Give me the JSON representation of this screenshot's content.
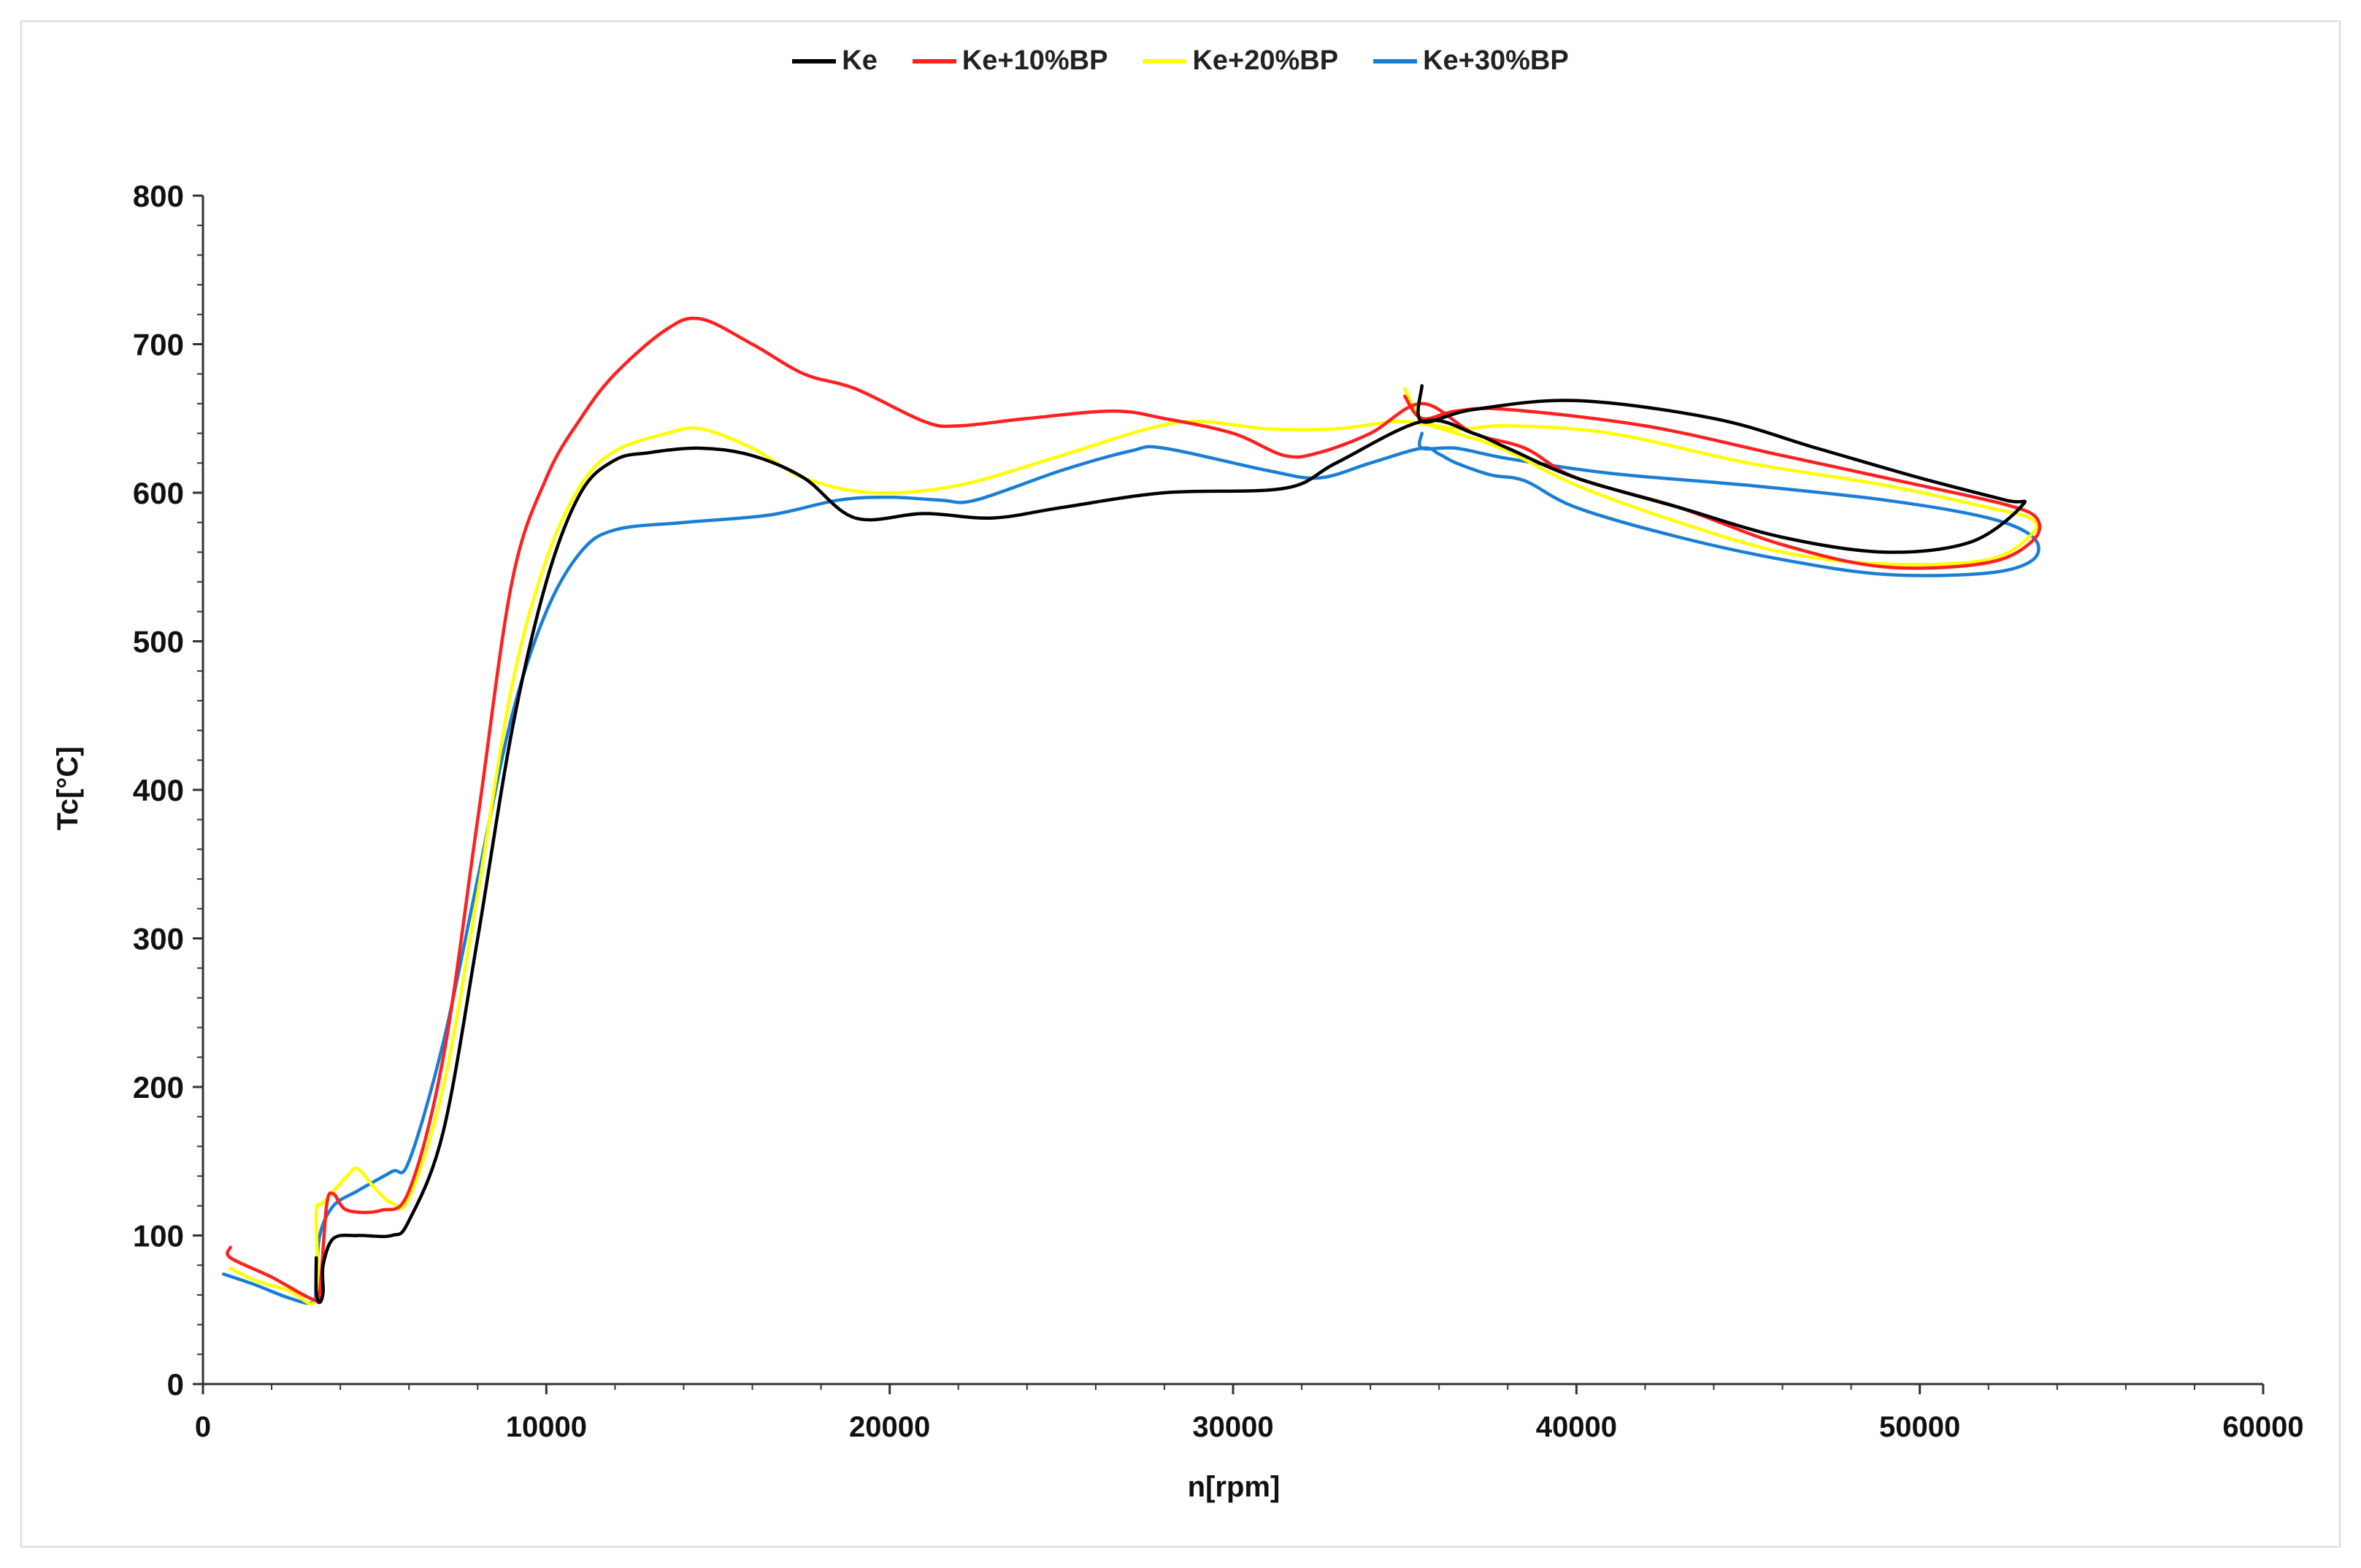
{
  "chart_data": {
    "type": "line",
    "title": "",
    "xlabel": "n[rpm]",
    "ylabel": "Tc[°C]",
    "xlim": [
      0,
      60000
    ],
    "ylim": [
      0,
      800
    ],
    "x_ticks": [
      0,
      10000,
      20000,
      30000,
      40000,
      50000,
      60000
    ],
    "y_ticks": [
      0,
      100,
      200,
      300,
      400,
      500,
      600,
      700,
      800
    ],
    "grid": false,
    "legend_position": "top-center",
    "series": [
      {
        "name": "Ke",
        "color": "#000000",
        "points": [
          [
            3300,
            85
          ],
          [
            3300,
            62
          ],
          [
            3400,
            55
          ],
          [
            3500,
            62
          ],
          [
            3500,
            80
          ],
          [
            3800,
            98
          ],
          [
            4500,
            100
          ],
          [
            5500,
            100
          ],
          [
            6000,
            110
          ],
          [
            7000,
            170
          ],
          [
            8000,
            300
          ],
          [
            9000,
            440
          ],
          [
            10000,
            540
          ],
          [
            11000,
            600
          ],
          [
            12000,
            622
          ],
          [
            13000,
            627
          ],
          [
            14500,
            630
          ],
          [
            16000,
            625
          ],
          [
            17500,
            610
          ],
          [
            19000,
            583
          ],
          [
            21000,
            586
          ],
          [
            23000,
            583
          ],
          [
            25000,
            590
          ],
          [
            28000,
            600
          ],
          [
            31500,
            603
          ],
          [
            33000,
            620
          ],
          [
            35500,
            648
          ],
          [
            37000,
            640
          ],
          [
            38000,
            630
          ],
          [
            40000,
            610
          ],
          [
            43000,
            590
          ],
          [
            46000,
            570
          ],
          [
            49000,
            560
          ],
          [
            51500,
            567
          ],
          [
            53000,
            592
          ],
          [
            52500,
            595
          ],
          [
            50000,
            610
          ],
          [
            47000,
            630
          ],
          [
            44000,
            650
          ],
          [
            40000,
            662
          ],
          [
            37000,
            656
          ],
          [
            35500,
            648
          ],
          [
            35500,
            672
          ]
        ]
      },
      {
        "name": "Ke+10%BP",
        "color": "#ff2020",
        "points": [
          [
            800,
            92
          ],
          [
            800,
            85
          ],
          [
            2000,
            72
          ],
          [
            3200,
            57
          ],
          [
            3400,
            62
          ],
          [
            3600,
            120
          ],
          [
            3800,
            128
          ],
          [
            4200,
            117
          ],
          [
            5200,
            117
          ],
          [
            6000,
            130
          ],
          [
            7000,
            220
          ],
          [
            8000,
            380
          ],
          [
            9000,
            540
          ],
          [
            10000,
            610
          ],
          [
            11000,
            650
          ],
          [
            12000,
            680
          ],
          [
            13500,
            710
          ],
          [
            14500,
            717
          ],
          [
            16000,
            700
          ],
          [
            17500,
            680
          ],
          [
            19000,
            670
          ],
          [
            21000,
            648
          ],
          [
            22000,
            645
          ],
          [
            24000,
            650
          ],
          [
            26500,
            655
          ],
          [
            28000,
            650
          ],
          [
            30000,
            640
          ],
          [
            31500,
            625
          ],
          [
            32500,
            627
          ],
          [
            34000,
            640
          ],
          [
            35500,
            660
          ],
          [
            37000,
            640
          ],
          [
            38500,
            630
          ],
          [
            40000,
            610
          ],
          [
            43000,
            590
          ],
          [
            46000,
            565
          ],
          [
            49000,
            550
          ],
          [
            52000,
            553
          ],
          [
            53300,
            568
          ],
          [
            53400,
            583
          ],
          [
            52500,
            592
          ],
          [
            50000,
            605
          ],
          [
            46000,
            625
          ],
          [
            42000,
            645
          ],
          [
            38000,
            656
          ],
          [
            36500,
            655
          ],
          [
            35500,
            650
          ],
          [
            35000,
            665
          ]
        ]
      },
      {
        "name": "Ke+20%BP",
        "color": "#ffff00",
        "points": [
          [
            800,
            78
          ],
          [
            1500,
            70
          ],
          [
            2500,
            63
          ],
          [
            3300,
            57
          ],
          [
            3300,
            115
          ],
          [
            3500,
            122
          ],
          [
            4200,
            140
          ],
          [
            4500,
            145
          ],
          [
            5000,
            132
          ],
          [
            5500,
            122
          ],
          [
            6000,
            125
          ],
          [
            7000,
            200
          ],
          [
            8000,
            330
          ],
          [
            9000,
            470
          ],
          [
            10000,
            555
          ],
          [
            11000,
            605
          ],
          [
            12000,
            628
          ],
          [
            13500,
            640
          ],
          [
            14500,
            643
          ],
          [
            16000,
            630
          ],
          [
            17500,
            610
          ],
          [
            19500,
            600
          ],
          [
            22000,
            605
          ],
          [
            25000,
            625
          ],
          [
            27500,
            643
          ],
          [
            29000,
            648
          ],
          [
            31000,
            643
          ],
          [
            33000,
            643
          ],
          [
            35000,
            648
          ],
          [
            36500,
            640
          ],
          [
            38000,
            628
          ],
          [
            40000,
            605
          ],
          [
            43000,
            580
          ],
          [
            46000,
            560
          ],
          [
            49000,
            552
          ],
          [
            52000,
            555
          ],
          [
            53300,
            573
          ],
          [
            53200,
            583
          ],
          [
            52000,
            590
          ],
          [
            49000,
            605
          ],
          [
            45000,
            620
          ],
          [
            41000,
            640
          ],
          [
            38000,
            645
          ],
          [
            36500,
            643
          ],
          [
            35500,
            650
          ],
          [
            35000,
            670
          ]
        ]
      },
      {
        "name": "Ke+30%BP",
        "color": "#1a7fd4",
        "points": [
          [
            600,
            74
          ],
          [
            1500,
            67
          ],
          [
            2500,
            58
          ],
          [
            3200,
            55
          ],
          [
            3300,
            70
          ],
          [
            3400,
            100
          ],
          [
            3800,
            120
          ],
          [
            4500,
            130
          ],
          [
            5500,
            143
          ],
          [
            6000,
            150
          ],
          [
            7000,
            230
          ],
          [
            8000,
            340
          ],
          [
            9000,
            450
          ],
          [
            10000,
            520
          ],
          [
            11000,
            560
          ],
          [
            12000,
            575
          ],
          [
            14000,
            580
          ],
          [
            16500,
            585
          ],
          [
            18500,
            595
          ],
          [
            20000,
            597
          ],
          [
            21500,
            595
          ],
          [
            22500,
            595
          ],
          [
            25000,
            615
          ],
          [
            27000,
            628
          ],
          [
            28000,
            630
          ],
          [
            31000,
            615
          ],
          [
            32500,
            610
          ],
          [
            34000,
            620
          ],
          [
            35500,
            630
          ],
          [
            36000,
            626
          ],
          [
            36500,
            620
          ],
          [
            37500,
            612
          ],
          [
            38500,
            608
          ],
          [
            40000,
            590
          ],
          [
            43000,
            570
          ],
          [
            46000,
            555
          ],
          [
            49000,
            545
          ],
          [
            52000,
            546
          ],
          [
            53300,
            555
          ],
          [
            53300,
            570
          ],
          [
            52000,
            583
          ],
          [
            49000,
            595
          ],
          [
            45000,
            605
          ],
          [
            41000,
            613
          ],
          [
            38000,
            623
          ],
          [
            36500,
            630
          ],
          [
            35500,
            630
          ],
          [
            35500,
            640
          ]
        ]
      }
    ]
  }
}
